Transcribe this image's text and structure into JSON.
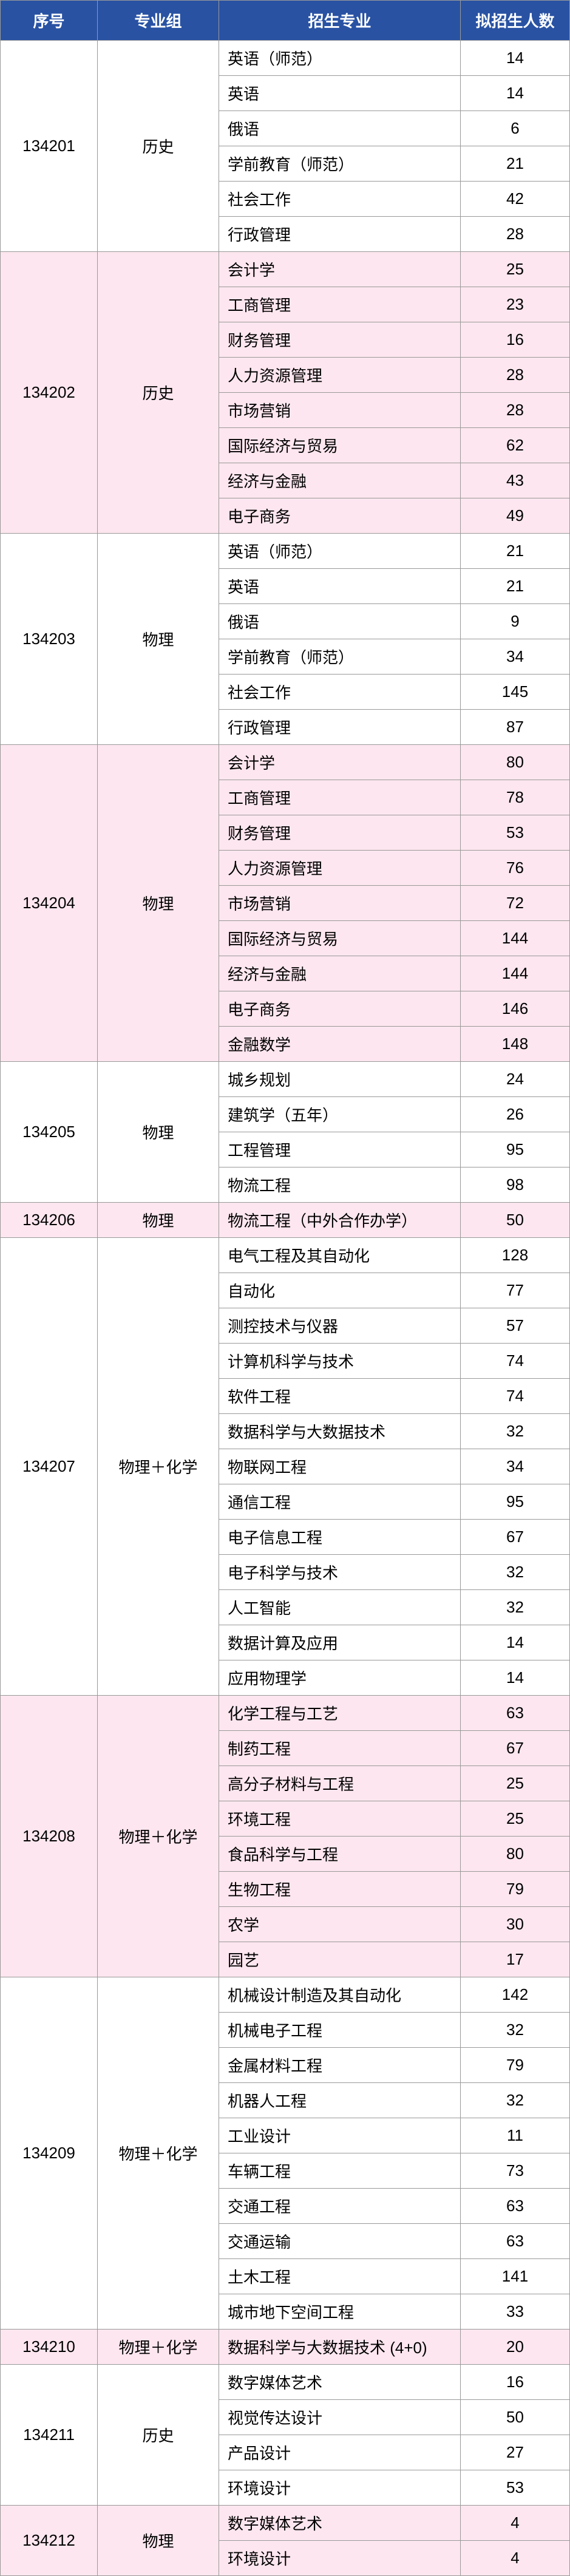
{
  "header": {
    "code": "序号",
    "group": "专业组",
    "major": "招生专业",
    "count": "拟招生人数"
  },
  "groups": [
    {
      "code": "134201",
      "group": "历史",
      "shade": "white",
      "rows": [
        {
          "major": "英语（师范）",
          "count": 14
        },
        {
          "major": "英语",
          "count": 14
        },
        {
          "major": "俄语",
          "count": 6
        },
        {
          "major": "学前教育（师范）",
          "count": 21
        },
        {
          "major": "社会工作",
          "count": 42
        },
        {
          "major": "行政管理",
          "count": 28
        }
      ]
    },
    {
      "code": "134202",
      "group": "历史",
      "shade": "pink",
      "rows": [
        {
          "major": "会计学",
          "count": 25
        },
        {
          "major": "工商管理",
          "count": 23
        },
        {
          "major": "财务管理",
          "count": 16
        },
        {
          "major": "人力资源管理",
          "count": 28
        },
        {
          "major": "市场营销",
          "count": 28
        },
        {
          "major": "国际经济与贸易",
          "count": 62
        },
        {
          "major": "经济与金融",
          "count": 43
        },
        {
          "major": "电子商务",
          "count": 49
        }
      ]
    },
    {
      "code": "134203",
      "group": "物理",
      "shade": "white",
      "rows": [
        {
          "major": "英语（师范）",
          "count": 21
        },
        {
          "major": "英语",
          "count": 21
        },
        {
          "major": "俄语",
          "count": 9
        },
        {
          "major": "学前教育（师范）",
          "count": 34
        },
        {
          "major": "社会工作",
          "count": 145
        },
        {
          "major": "行政管理",
          "count": 87
        }
      ]
    },
    {
      "code": "134204",
      "group": "物理",
      "shade": "pink",
      "rows": [
        {
          "major": "会计学",
          "count": 80
        },
        {
          "major": "工商管理",
          "count": 78
        },
        {
          "major": "财务管理",
          "count": 53
        },
        {
          "major": "人力资源管理",
          "count": 76
        },
        {
          "major": "市场营销",
          "count": 72
        },
        {
          "major": "国际经济与贸易",
          "count": 144
        },
        {
          "major": "经济与金融",
          "count": 144
        },
        {
          "major": "电子商务",
          "count": 146
        },
        {
          "major": "金融数学",
          "count": 148
        }
      ]
    },
    {
      "code": "134205",
      "group": "物理",
      "shade": "white",
      "rows": [
        {
          "major": "城乡规划",
          "count": 24
        },
        {
          "major": "建筑学（五年）",
          "count": 26
        },
        {
          "major": "工程管理",
          "count": 95
        },
        {
          "major": "物流工程",
          "count": 98
        }
      ]
    },
    {
      "code": "134206",
      "group": "物理",
      "shade": "pink",
      "rows": [
        {
          "major": "物流工程（中外合作办学）",
          "count": 50
        }
      ]
    },
    {
      "code": "134207",
      "group": "物理＋化学",
      "shade": "white",
      "rows": [
        {
          "major": "电气工程及其自动化",
          "count": 128
        },
        {
          "major": "自动化",
          "count": 77
        },
        {
          "major": "测控技术与仪器",
          "count": 57
        },
        {
          "major": "计算机科学与技术",
          "count": 74
        },
        {
          "major": "软件工程",
          "count": 74
        },
        {
          "major": "数据科学与大数据技术",
          "count": 32
        },
        {
          "major": "物联网工程",
          "count": 34
        },
        {
          "major": "通信工程",
          "count": 95
        },
        {
          "major": "电子信息工程",
          "count": 67
        },
        {
          "major": "电子科学与技术",
          "count": 32
        },
        {
          "major": "人工智能",
          "count": 32
        },
        {
          "major": "数据计算及应用",
          "count": 14
        },
        {
          "major": "应用物理学",
          "count": 14
        }
      ]
    },
    {
      "code": "134208",
      "group": "物理＋化学",
      "shade": "pink",
      "rows": [
        {
          "major": "化学工程与工艺",
          "count": 63
        },
        {
          "major": "制药工程",
          "count": 67
        },
        {
          "major": "高分子材料与工程",
          "count": 25
        },
        {
          "major": "环境工程",
          "count": 25
        },
        {
          "major": "食品科学与工程",
          "count": 80
        },
        {
          "major": "生物工程",
          "count": 79
        },
        {
          "major": "农学",
          "count": 30
        },
        {
          "major": "园艺",
          "count": 17
        }
      ]
    },
    {
      "code": "134209",
      "group": "物理＋化学",
      "shade": "white",
      "rows": [
        {
          "major": "机械设计制造及其自动化",
          "count": 142
        },
        {
          "major": "机械电子工程",
          "count": 32
        },
        {
          "major": "金属材料工程",
          "count": 79
        },
        {
          "major": "机器人工程",
          "count": 32
        },
        {
          "major": "工业设计",
          "count": 11
        },
        {
          "major": "车辆工程",
          "count": 73
        },
        {
          "major": "交通工程",
          "count": 63
        },
        {
          "major": "交通运输",
          "count": 63
        },
        {
          "major": "土木工程",
          "count": 141
        },
        {
          "major": "城市地下空间工程",
          "count": 33
        }
      ]
    },
    {
      "code": "134210",
      "group": "物理＋化学",
      "shade": "pink",
      "rows": [
        {
          "major": "数据科学与大数据技术 (4+0)",
          "count": 20
        }
      ]
    },
    {
      "code": "134211",
      "group": "历史",
      "shade": "white",
      "rows": [
        {
          "major": "数字媒体艺术",
          "count": 16
        },
        {
          "major": "视觉传达设计",
          "count": 50
        },
        {
          "major": "产品设计",
          "count": 27
        },
        {
          "major": "环境设计",
          "count": 53
        }
      ]
    },
    {
      "code": "134212",
      "group": "物理",
      "shade": "pink",
      "rows": [
        {
          "major": "数字媒体艺术",
          "count": 4
        },
        {
          "major": "环境设计",
          "count": 4
        }
      ]
    }
  ]
}
